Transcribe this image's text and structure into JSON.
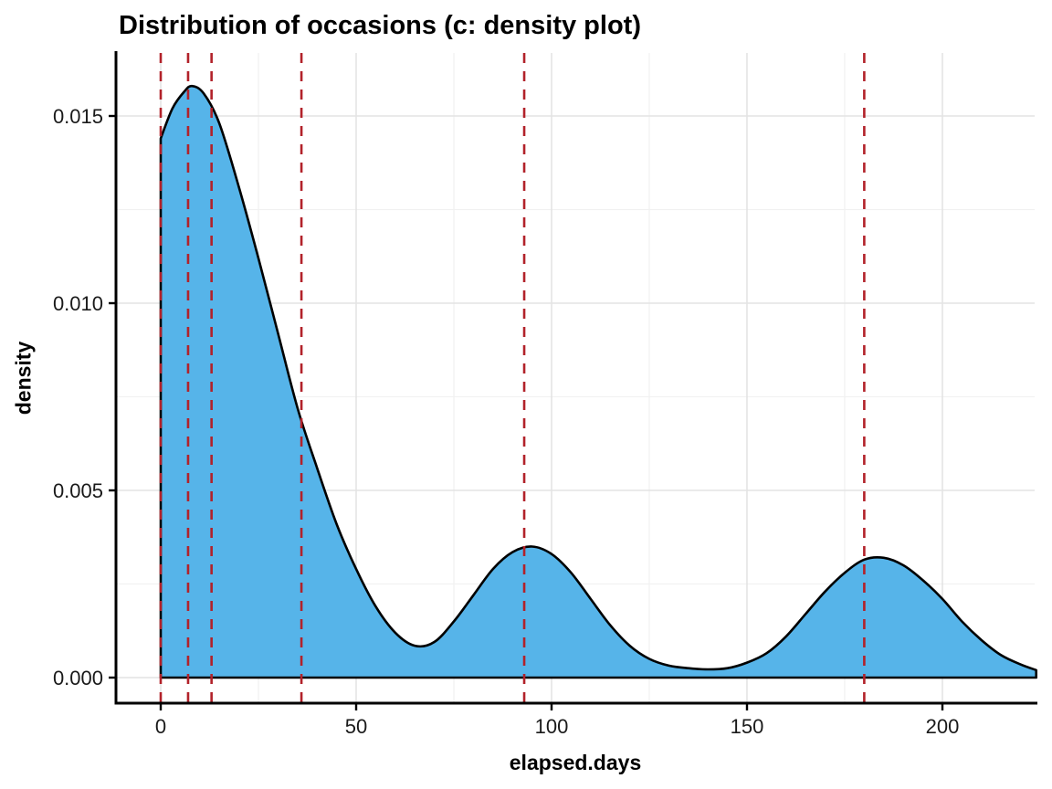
{
  "page": {
    "background": "#ffffff"
  },
  "chart_data": {
    "type": "area",
    "subtype": "density",
    "title": "Distribution of occasions (c: density plot)",
    "xlabel": "elapsed.days",
    "ylabel": "density",
    "xlim": [
      -11.45,
      223.6
    ],
    "ylim": [
      -0.000683,
      0.016683
    ],
    "x_ticks": [
      0,
      50,
      100,
      150,
      200
    ],
    "x_tick_labels": [
      "0",
      "50",
      "100",
      "150",
      "200"
    ],
    "y_ticks": [
      0,
      0.005,
      0.01,
      0.015
    ],
    "y_tick_labels": [
      "0.000",
      "0.005",
      "0.010",
      "0.015"
    ],
    "grid": true,
    "legend": "none",
    "series": [
      {
        "name": "density",
        "x": [
          0,
          3,
          6,
          8,
          11,
          15,
          20,
          25,
          30,
          35,
          40,
          45,
          50,
          55,
          60,
          65,
          70,
          75,
          80,
          85,
          90,
          95,
          100,
          105,
          110,
          115,
          120,
          125,
          130,
          135,
          140,
          145,
          150,
          155,
          160,
          165,
          170,
          175,
          180,
          185,
          190,
          195,
          200,
          205,
          210,
          215,
          220,
          224
        ],
        "y": [
          0.0144,
          0.0152,
          0.01565,
          0.0158,
          0.0156,
          0.0148,
          0.0131,
          0.0112,
          0.0092,
          0.0072,
          0.0056,
          0.0041,
          0.0029,
          0.0019,
          0.0012,
          0.00085,
          0.00095,
          0.0015,
          0.0022,
          0.0029,
          0.00335,
          0.0035,
          0.0033,
          0.0028,
          0.0021,
          0.0014,
          0.00085,
          0.0005,
          0.00032,
          0.00025,
          0.00022,
          0.00025,
          0.0004,
          0.00065,
          0.0011,
          0.0017,
          0.0023,
          0.0028,
          0.00315,
          0.0032,
          0.003,
          0.0026,
          0.0021,
          0.0015,
          0.001,
          0.0006,
          0.00035,
          0.0002
        ]
      }
    ],
    "vlines": [
      0,
      7,
      13,
      36,
      93,
      180
    ],
    "colors": {
      "fill": "#56B4E9",
      "line": "#000000",
      "vline": "#B2222A",
      "grid_major": "#E4E4E4",
      "grid_minor": "#F1F1F1",
      "axis": "#000000",
      "text": "#1a1a1a"
    }
  }
}
